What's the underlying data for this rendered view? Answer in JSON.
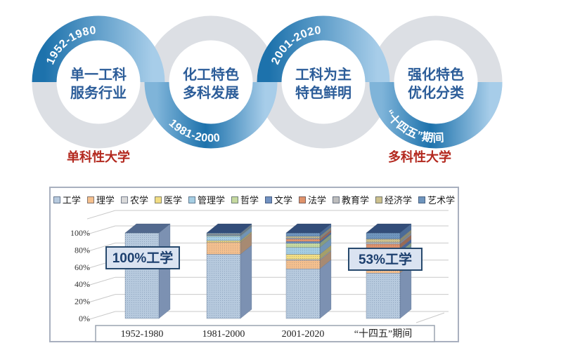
{
  "timeline": {
    "stages": [
      {
        "period": "1952-1980",
        "line1": "单一工科",
        "line2": "服务行业",
        "arc": "top"
      },
      {
        "period": "1981-2000",
        "line1": "化工特色",
        "line2": "多科发展",
        "arc": "bottom"
      },
      {
        "period": "2001-2020",
        "line1": "工科为主",
        "line2": "特色鲜明",
        "arc": "top"
      },
      {
        "period": "“十四五”期间",
        "line1": "强化特色",
        "line2": "优化分类",
        "arc": "bottom"
      }
    ],
    "left_label": "单科性大学",
    "right_label": "多科性大学",
    "label_color": "#b3281e",
    "blue_dark": "#1d72ac",
    "blue_light": "#a7cde9",
    "gray_ring": "#dcdfe4",
    "center_text_color": "#2c5d99",
    "date_text_color": "#ffffff"
  },
  "chart_data": {
    "type": "bar",
    "stacked": true,
    "projection": "3d",
    "title": "",
    "xlabel": "",
    "ylabel": "",
    "ylim": [
      0,
      100
    ],
    "y_ticks": [
      "0%",
      "20%",
      "40%",
      "60%",
      "80%",
      "100%"
    ],
    "legend_position": "top",
    "grid": true,
    "categories": [
      "1952-1980",
      "1981-2000",
      "2001-2020",
      "“十四五”期间"
    ],
    "series": [
      {
        "name": "工学",
        "color": "#b7cade",
        "values": [
          100,
          75,
          58,
          53
        ]
      },
      {
        "name": "理学",
        "color": "#f5c08e",
        "values": [
          0,
          14,
          10,
          7
        ]
      },
      {
        "name": "农学",
        "color": "#d9d9d9",
        "values": [
          0,
          0,
          1,
          1
        ]
      },
      {
        "name": "医学",
        "color": "#f2dd83",
        "values": [
          0,
          2,
          6,
          5
        ]
      },
      {
        "name": "管理学",
        "color": "#a6cee3",
        "values": [
          0,
          5,
          8,
          8
        ]
      },
      {
        "name": "哲学",
        "color": "#c6d9a0",
        "values": [
          0,
          1,
          5,
          4
        ]
      },
      {
        "name": "文学",
        "color": "#7191c1",
        "values": [
          0,
          1,
          2,
          4
        ]
      },
      {
        "name": "法学",
        "color": "#e0936b",
        "values": [
          0,
          0,
          3,
          5
        ]
      },
      {
        "name": "教育学",
        "color": "#bdbdbd",
        "values": [
          0,
          0,
          1,
          2
        ]
      },
      {
        "name": "经济学",
        "color": "#ccc08d",
        "values": [
          0,
          1,
          2,
          4
        ]
      },
      {
        "name": "艺术学",
        "color": "#6f95bd",
        "values": [
          0,
          1,
          4,
          7
        ]
      }
    ],
    "annotations": [
      {
        "text": "100%工学",
        "target_category": 0
      },
      {
        "text": "53%工学",
        "target_category": 3
      }
    ]
  }
}
